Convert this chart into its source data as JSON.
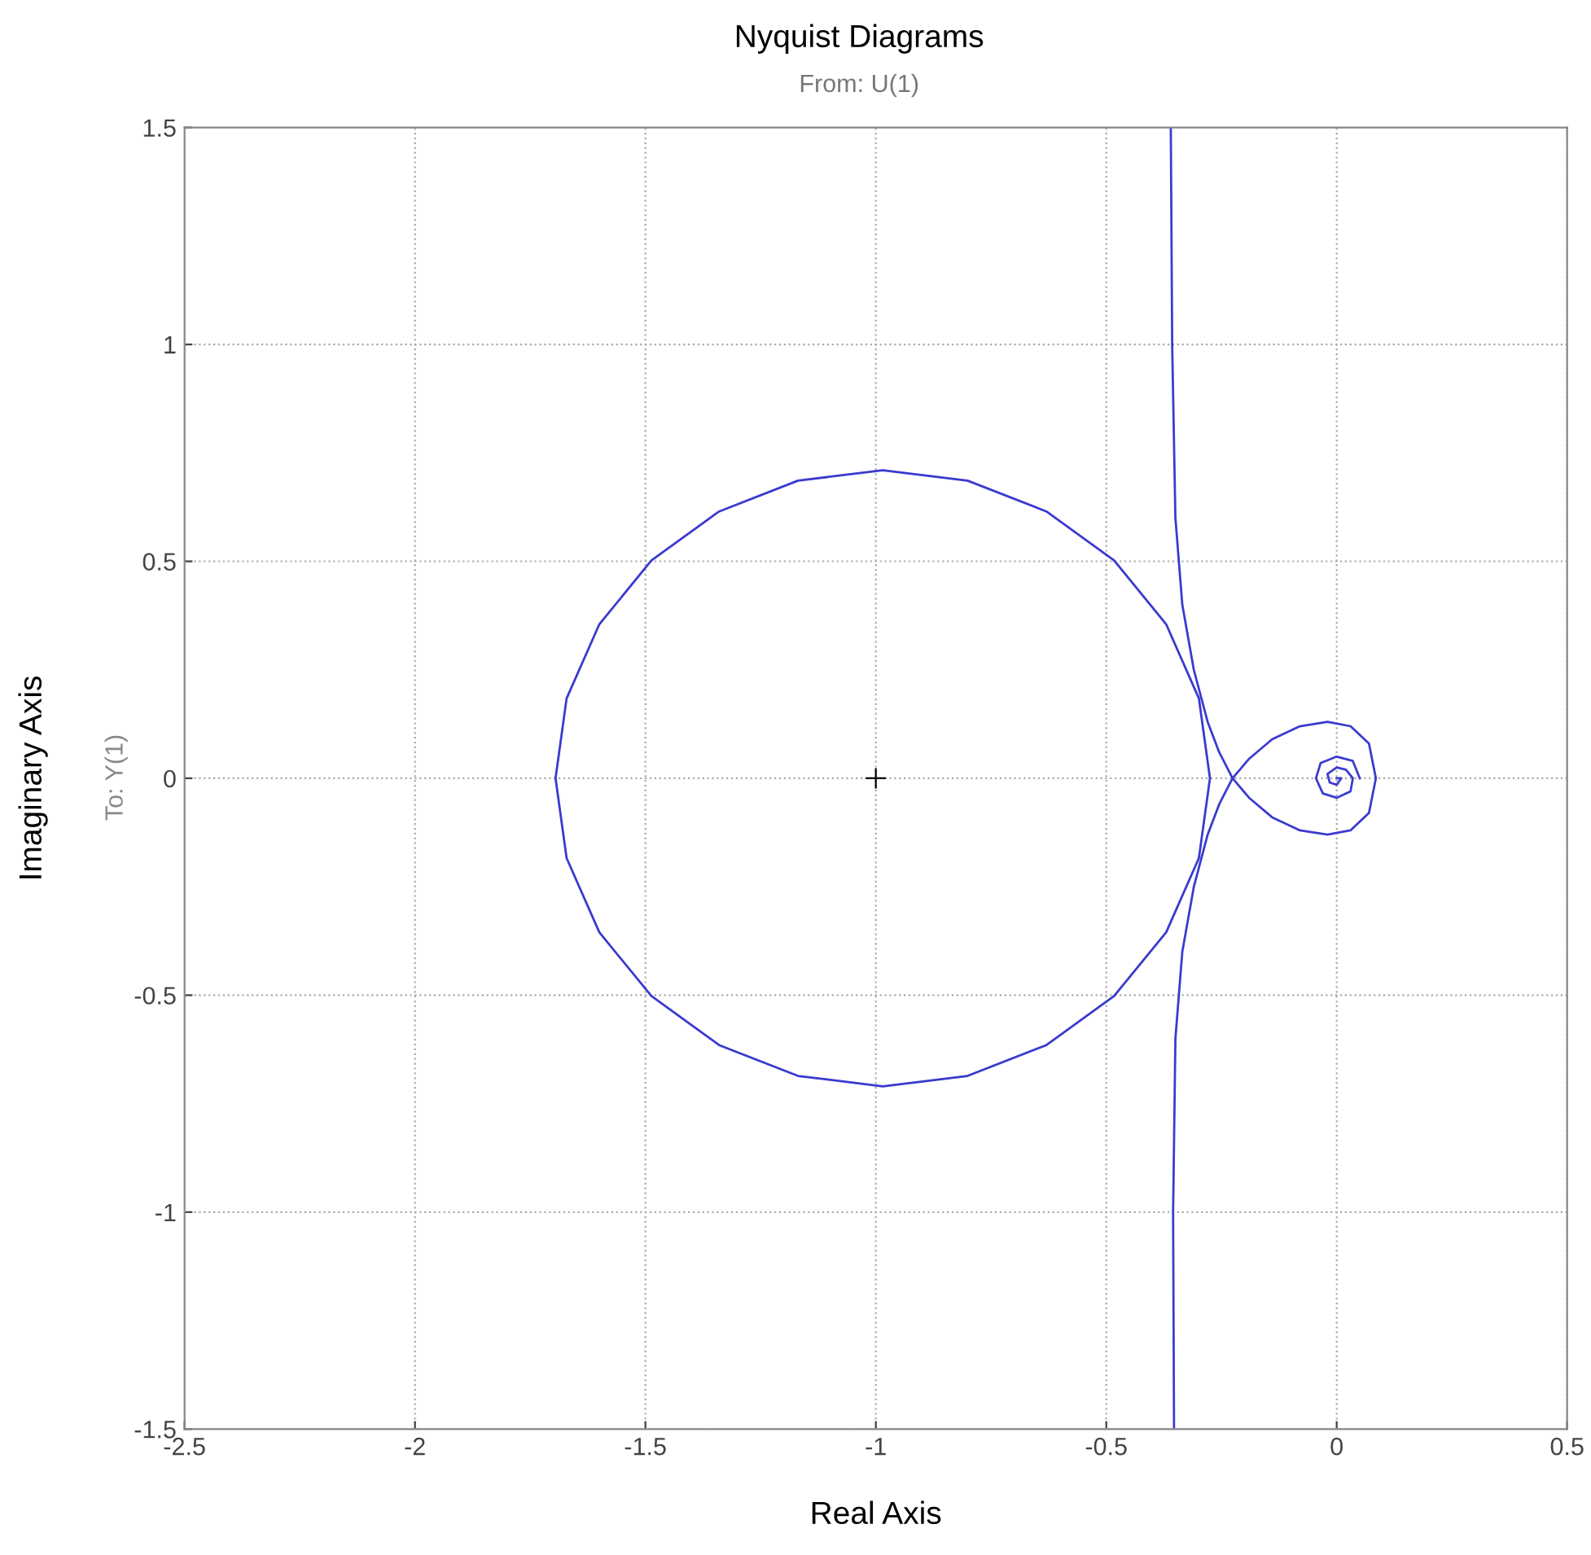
{
  "chart_data": {
    "type": "line",
    "title": "Nyquist Diagrams",
    "subtitle": "From: U(1)",
    "xlabel": "Real Axis",
    "ylabel": "Imaginary Axis",
    "annotations": [
      "To: Y(1)"
    ],
    "xlim": [
      -2.5,
      0.5
    ],
    "ylim": [
      -1.5,
      1.5
    ],
    "xticks": [
      -2.5,
      -2,
      -1.5,
      -1,
      -0.5,
      0,
      0.5
    ],
    "yticks": [
      -1.5,
      -1,
      -0.5,
      0,
      0.5,
      1,
      1.5
    ],
    "grid": true,
    "line_style": "solid",
    "series": [
      {
        "color": "#3a3acf",
        "x": [
          -0.275,
          -0.299,
          -0.37,
          -0.483,
          -0.63,
          -0.801,
          -0.985,
          -1.169,
          -1.34,
          -1.487,
          -1.6,
          -1.671,
          -1.695,
          -1.671,
          -1.6,
          -1.487,
          -1.34,
          -1.169,
          -0.985,
          -0.801,
          -0.63,
          -0.483,
          -0.37,
          -0.299,
          -0.275,
          -0.299
        ],
        "values": [
          0,
          0.184,
          0.355,
          0.502,
          0.615,
          0.686,
          0.71,
          0.686,
          0.615,
          0.502,
          0.355,
          0.184,
          0,
          -0.184,
          -0.355,
          -0.502,
          -0.615,
          -0.686,
          -0.71,
          -0.686,
          -0.615,
          -0.502,
          -0.355,
          -0.184,
          0,
          0.184
        ]
      },
      {
        "color": "#3b3bd0",
        "x": [
          -0.36,
          -0.357,
          -0.35,
          -0.335,
          -0.31,
          -0.28,
          -0.255,
          -0.226,
          -0.19,
          -0.14,
          -0.08,
          -0.02,
          0.03,
          0.07,
          0.085,
          0.07,
          0.03,
          -0.02,
          -0.08,
          -0.14,
          -0.19,
          -0.226,
          -0.255,
          -0.28,
          -0.31,
          -0.335,
          -0.35,
          -0.355,
          -0.353
        ],
        "values": [
          1.5,
          1.0,
          0.6,
          0.4,
          0.25,
          0.13,
          0.06,
          0,
          -0.045,
          -0.09,
          -0.12,
          -0.13,
          -0.12,
          -0.08,
          0,
          0.08,
          0.12,
          0.13,
          0.12,
          0.09,
          0.045,
          0,
          -0.06,
          -0.13,
          -0.25,
          -0.4,
          -0.6,
          -1.0,
          -1.5
        ]
      },
      {
        "color": "#3c3cd1",
        "x": [
          0.05,
          0.035,
          0,
          -0.035,
          -0.045,
          -0.03,
          0,
          0.03,
          0.035,
          0.02,
          0,
          -0.02,
          -0.015,
          0,
          0.01,
          0
        ],
        "values": [
          0,
          0.04,
          0.05,
          0.035,
          0,
          -0.035,
          -0.045,
          -0.03,
          0,
          0.02,
          0.025,
          0.01,
          -0.01,
          -0.015,
          0,
          0
        ]
      },
      {
        "type": "scatter",
        "marker": "cross",
        "color": "#000000",
        "x": [
          -1
        ],
        "values": [
          0
        ]
      }
    ]
  }
}
